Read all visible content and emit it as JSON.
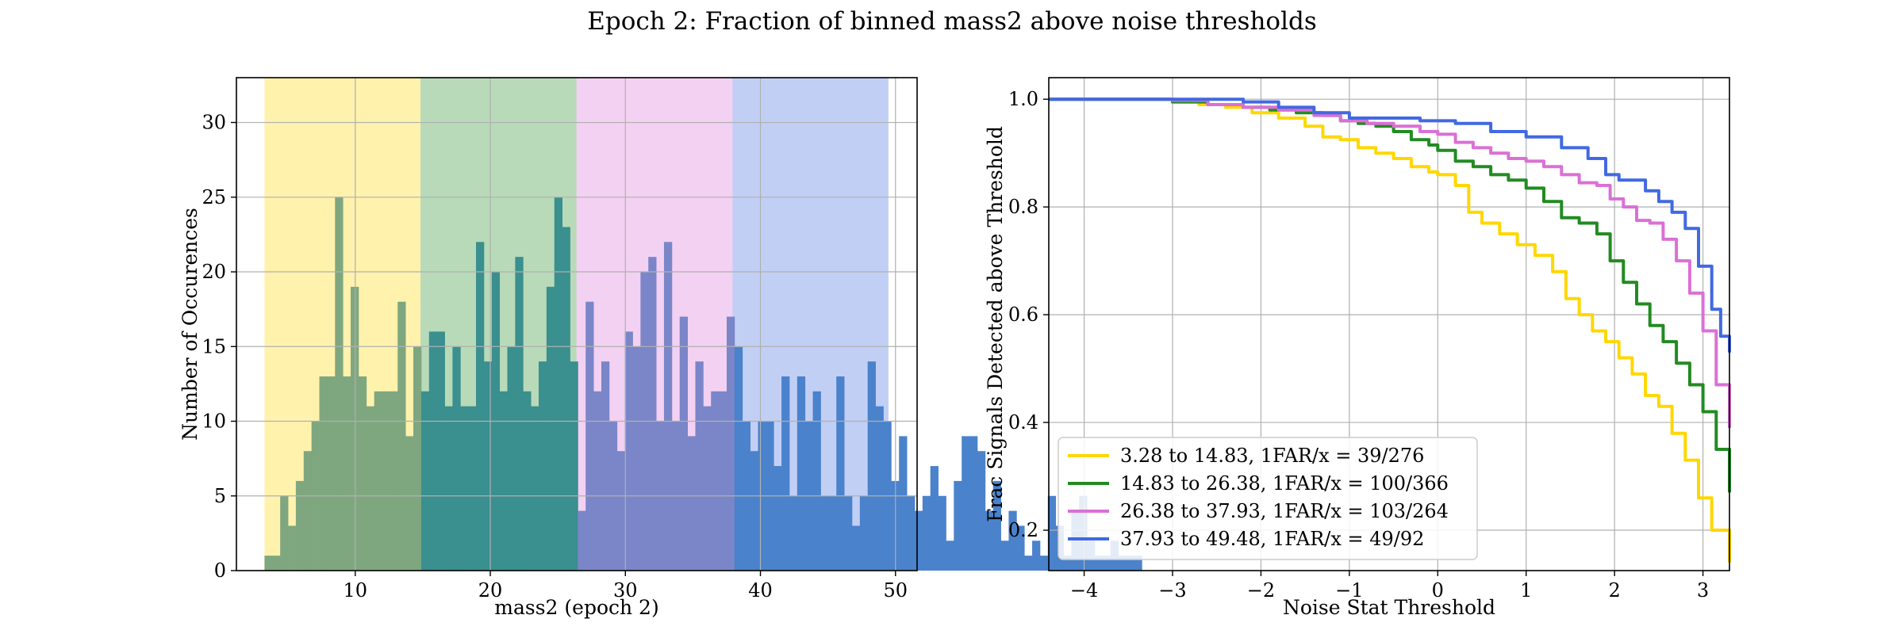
{
  "figure": {
    "title": "Epoch 2: Fraction of binned mass2 above noise thresholds"
  },
  "chart_data": [
    {
      "type": "bar",
      "subtype": "histogram",
      "xlabel": "mass2 (epoch 2)",
      "ylabel": "Number of Occurences",
      "xlim": [
        1.2,
        51.6
      ],
      "ylim": [
        0,
        33
      ],
      "xticks": [
        10,
        20,
        30,
        40,
        50
      ],
      "yticks": [
        0,
        5,
        10,
        15,
        20,
        25,
        30
      ],
      "grid": true,
      "bin_width": 0.58,
      "bin_start": 3.28,
      "counts": [
        1,
        1,
        5,
        3,
        6,
        8,
        10,
        13,
        13,
        25,
        13,
        19,
        13,
        11,
        12,
        12,
        12,
        18,
        9,
        15,
        12,
        16,
        16,
        11,
        15,
        11,
        11,
        22,
        14,
        20,
        12,
        15,
        21,
        12,
        11,
        14,
        19,
        25,
        23,
        14,
        4,
        18,
        12,
        14,
        10,
        8,
        16,
        15,
        20,
        21,
        10,
        22,
        10,
        17,
        9,
        14,
        11,
        12,
        12,
        17,
        15,
        10,
        8,
        10,
        10,
        7,
        13,
        5,
        13,
        10,
        12,
        5,
        5,
        13,
        5,
        3,
        5,
        14,
        11,
        10,
        6,
        9,
        5,
        4,
        5,
        7,
        5,
        2,
        6,
        9,
        9,
        8,
        4,
        6,
        2,
        4,
        3,
        1,
        2,
        1,
        5,
        3,
        1,
        4,
        5,
        2,
        1,
        1,
        2,
        1,
        1,
        1
      ],
      "regions": [
        {
          "from": 3.28,
          "to": 14.83,
          "color": "#ffd700"
        },
        {
          "from": 14.83,
          "to": 26.38,
          "color": "#228b22"
        },
        {
          "from": 26.38,
          "to": 37.93,
          "color": "#da70d6"
        },
        {
          "from": 37.93,
          "to": 49.48,
          "color": "#4169e1"
        }
      ],
      "region_alpha": 0.32,
      "bar_colors": [
        "#7fa77f",
        "#3a8f8f",
        "#7a86c8",
        "#4a82cc"
      ]
    },
    {
      "type": "line",
      "xlabel": "Noise Stat Threshold",
      "ylabel": "Frac Signals Detected above Threshold",
      "xlim": [
        -4.4,
        3.3
      ],
      "ylim": [
        0.125,
        1.04
      ],
      "xticks": [
        -4,
        -3,
        -2,
        -1,
        0,
        1,
        2,
        3
      ],
      "yticks": [
        0.2,
        0.4,
        0.6,
        0.8,
        1.0
      ],
      "xticklabels": [
        "−4",
        "−3",
        "−2",
        "−1",
        "0",
        "1",
        "2",
        "3"
      ],
      "yticklabels": [
        "0.2",
        "0.4",
        "0.6",
        "0.8",
        "1.0"
      ],
      "grid": true,
      "legend_position": "lower-left",
      "series": [
        {
          "name": "3.28 to 14.83, 1FAR/x = 39/276",
          "color": "#ffd700",
          "x": [
            -4.4,
            -3.4,
            -3.0,
            -2.7,
            -2.4,
            -2.1,
            -1.8,
            -1.5,
            -1.3,
            -1.1,
            -0.9,
            -0.7,
            -0.5,
            -0.3,
            -0.1,
            0.0,
            0.2,
            0.35,
            0.5,
            0.7,
            0.9,
            1.1,
            1.3,
            1.45,
            1.6,
            1.75,
            1.9,
            2.05,
            2.2,
            2.35,
            2.5,
            2.65,
            2.8,
            2.95,
            3.1,
            3.3
          ],
          "y": [
            1.0,
            1.0,
            0.995,
            0.99,
            0.985,
            0.975,
            0.965,
            0.95,
            0.93,
            0.925,
            0.91,
            0.9,
            0.89,
            0.875,
            0.865,
            0.86,
            0.84,
            0.79,
            0.77,
            0.75,
            0.73,
            0.71,
            0.68,
            0.63,
            0.6,
            0.57,
            0.55,
            0.52,
            0.49,
            0.45,
            0.43,
            0.38,
            0.33,
            0.26,
            0.2,
            0.14
          ]
        },
        {
          "name": "14.83 to 26.38, 1FAR/x = 100/366",
          "color": "#228b22",
          "x": [
            -4.4,
            -3.4,
            -3.0,
            -2.6,
            -2.2,
            -1.9,
            -1.6,
            -1.3,
            -1.1,
            -0.9,
            -0.7,
            -0.5,
            -0.3,
            -0.1,
            0.0,
            0.2,
            0.4,
            0.6,
            0.8,
            1.0,
            1.2,
            1.4,
            1.6,
            1.8,
            1.95,
            2.1,
            2.25,
            2.4,
            2.55,
            2.7,
            2.85,
            3.0,
            3.15,
            3.3
          ],
          "y": [
            1.0,
            1.0,
            0.995,
            0.99,
            0.985,
            0.98,
            0.975,
            0.97,
            0.96,
            0.955,
            0.95,
            0.94,
            0.925,
            0.915,
            0.905,
            0.885,
            0.875,
            0.86,
            0.85,
            0.835,
            0.81,
            0.78,
            0.77,
            0.75,
            0.7,
            0.66,
            0.62,
            0.58,
            0.55,
            0.51,
            0.47,
            0.42,
            0.35,
            0.27
          ]
        },
        {
          "name": "26.38 to 37.93, 1FAR/x = 103/264",
          "color": "#da70d6",
          "x": [
            -4.4,
            -3.4,
            -3.0,
            -2.6,
            -2.2,
            -1.8,
            -1.4,
            -1.1,
            -0.8,
            -0.5,
            -0.2,
            0.0,
            0.2,
            0.4,
            0.6,
            0.8,
            1.0,
            1.2,
            1.4,
            1.6,
            1.8,
            1.95,
            2.1,
            2.25,
            2.4,
            2.55,
            2.7,
            2.85,
            3.0,
            3.15,
            3.3
          ],
          "y": [
            1.0,
            1.0,
            0.998,
            0.99,
            0.985,
            0.98,
            0.97,
            0.96,
            0.955,
            0.95,
            0.94,
            0.935,
            0.92,
            0.91,
            0.9,
            0.89,
            0.885,
            0.875,
            0.86,
            0.845,
            0.84,
            0.815,
            0.8,
            0.775,
            0.77,
            0.74,
            0.7,
            0.64,
            0.57,
            0.47,
            0.39
          ]
        },
        {
          "name": "37.93 to 49.48, 1FAR/x = 49/92",
          "color": "#4169e1",
          "x": [
            -4.4,
            -3.4,
            -3.0,
            -2.6,
            -2.2,
            -1.8,
            -1.4,
            -1.0,
            -0.6,
            -0.2,
            0.2,
            0.6,
            1.0,
            1.4,
            1.7,
            1.9,
            2.05,
            2.2,
            2.35,
            2.5,
            2.65,
            2.8,
            2.95,
            3.1,
            3.2,
            3.3
          ],
          "y": [
            1.0,
            1.0,
            1.0,
            1.0,
            0.995,
            0.985,
            0.975,
            0.965,
            0.965,
            0.96,
            0.955,
            0.94,
            0.93,
            0.91,
            0.89,
            0.86,
            0.85,
            0.85,
            0.83,
            0.81,
            0.79,
            0.76,
            0.69,
            0.61,
            0.56,
            0.53
          ]
        }
      ]
    }
  ]
}
